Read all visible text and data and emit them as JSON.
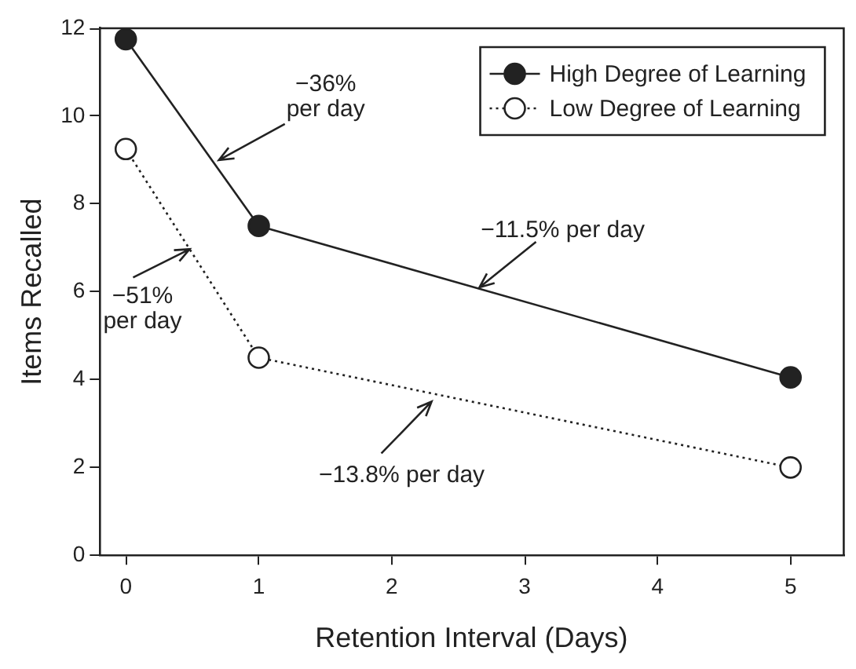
{
  "chart_data": {
    "type": "line",
    "xlabel": "Retention Interval (Days)",
    "ylabel": "Items Recalled",
    "x": [
      0,
      1,
      5
    ],
    "series": [
      {
        "name": "High Degree of Learning",
        "color": "#222222",
        "values": [
          11.75,
          7.5,
          4.05
        ],
        "line_style": "solid"
      },
      {
        "name": "Low Degree of Learning",
        "color": "#222222",
        "values": [
          9.25,
          4.5,
          2.0
        ],
        "line_style": "dotted"
      }
    ],
    "xlim": [
      -0.2,
      5.4
    ],
    "xticks": [
      0,
      1,
      2,
      3,
      4,
      5
    ],
    "ylim": [
      0,
      12
    ],
    "yticks": [
      0,
      2,
      4,
      6,
      8,
      10,
      12
    ],
    "grid": false,
    "legend": "top right",
    "marker": "circle",
    "annotations": [
      {
        "text": "−36%\nper day",
        "x": 0.7,
        "y": 9.0
      },
      {
        "text": "−11.5% per day",
        "x": 2.66,
        "y": 6.1
      },
      {
        "text": "−51%\nper day",
        "x": 0.48,
        "y": 6.97
      },
      {
        "text": "−13.8% per day",
        "x": 2.3,
        "y": 3.5
      }
    ]
  }
}
